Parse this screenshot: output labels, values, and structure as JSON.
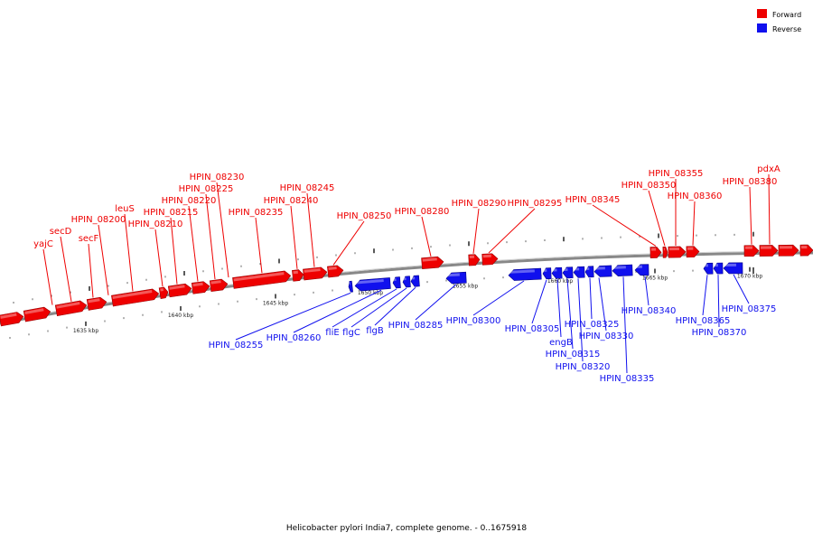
{
  "legend": {
    "forward": {
      "label": "Forward",
      "color": "#ee0000"
    },
    "reverse": {
      "label": "Reverse",
      "color": "#1010ee"
    }
  },
  "caption": "Helicobacter pylori India7, complete genome. - 0..1675918",
  "axis": {
    "backbone_color": "#888888",
    "ticks": [
      "1635 kbp",
      "1640 kbp",
      "1645 kbp",
      "1650 kbp",
      "1655 kbp",
      "1660 kbp",
      "1665 kbp",
      "1670 kbp"
    ]
  },
  "forward_genes": [
    "yajC",
    "secD",
    "secF",
    "HPIN_08200",
    "leuS",
    "HPIN_08210",
    "HPIN_08215",
    "HPIN_08220",
    "HPIN_08225",
    "HPIN_08230",
    "HPIN_08235",
    "HPIN_08240",
    "HPIN_08245",
    "HPIN_08250",
    "HPIN_08280",
    "HPIN_08290",
    "HPIN_08295",
    "HPIN_08345",
    "HPIN_08350",
    "HPIN_08355",
    "HPIN_08360",
    "HPIN_08380",
    "pdxA"
  ],
  "reverse_genes": [
    "HPIN_08255",
    "HPIN_08260",
    "fliE",
    "flgC",
    "flgB",
    "HPIN_08285",
    "HPIN_08300",
    "HPIN_08305",
    "engB",
    "HPIN_08315",
    "HPIN_08320",
    "HPIN_08325",
    "HPIN_08330",
    "HPIN_08335",
    "HPIN_08340",
    "HPIN_08365",
    "HPIN_08370",
    "HPIN_08375"
  ]
}
